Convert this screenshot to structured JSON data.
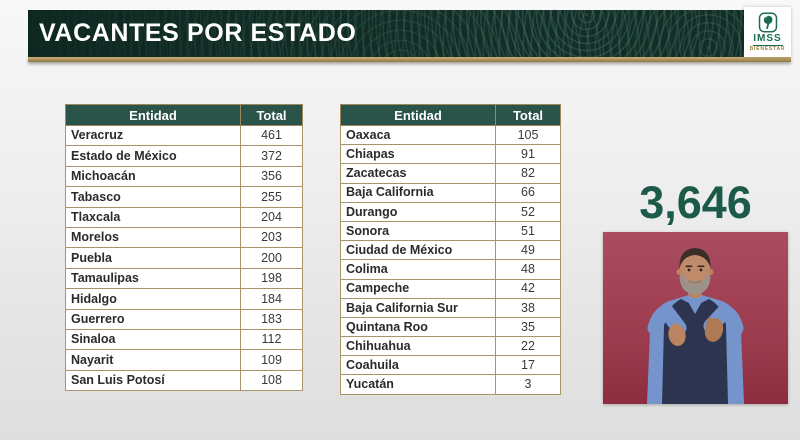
{
  "slide": {
    "title": "VACANTES POR ESTADO",
    "total_label": "3,646"
  },
  "logo": {
    "brand": "IMSS",
    "tagline": "BIENESTAR"
  },
  "tables": [
    {
      "columns": [
        "Entidad",
        "Total"
      ],
      "rows": [
        [
          "Veracruz",
          "461"
        ],
        [
          "Estado de México",
          "372"
        ],
        [
          "Michoacán",
          "356"
        ],
        [
          "Tabasco",
          "255"
        ],
        [
          "Tlaxcala",
          "204"
        ],
        [
          "Morelos",
          "203"
        ],
        [
          "Puebla",
          "200"
        ],
        [
          "Tamaulipas",
          "198"
        ],
        [
          "Hidalgo",
          "184"
        ],
        [
          "Guerrero",
          "183"
        ],
        [
          "Sinaloa",
          "112"
        ],
        [
          "Nayarit",
          "109"
        ],
        [
          "San Luis Potosí",
          "108"
        ]
      ]
    },
    {
      "columns": [
        "Entidad",
        "Total"
      ],
      "rows": [
        [
          "Oaxaca",
          "105"
        ],
        [
          "Chiapas",
          "91"
        ],
        [
          "Zacatecas",
          "82"
        ],
        [
          "Baja California",
          "66"
        ],
        [
          "Durango",
          "52"
        ],
        [
          "Sonora",
          "51"
        ],
        [
          "Ciudad de México",
          "49"
        ],
        [
          "Colima",
          "48"
        ],
        [
          "Campeche",
          "42"
        ],
        [
          "Baja California Sur",
          "38"
        ],
        [
          "Quintana Roo",
          "35"
        ],
        [
          "Chihuahua",
          "22"
        ],
        [
          "Coahuila",
          "17"
        ],
        [
          "Yucatán",
          "3"
        ]
      ]
    }
  ],
  "icons": {
    "imss_emblem": "imss-eagle-logo",
    "interpreter_video": "sign-language-interpreter"
  },
  "colors": {
    "banner_green": "#143029",
    "table_header_green": "#2a5349",
    "gold_accent": "#a98e55",
    "total_green": "#1c5a49",
    "video_pink_top": "#aa4c60",
    "video_maroon_bottom": "#8c2c3e"
  }
}
